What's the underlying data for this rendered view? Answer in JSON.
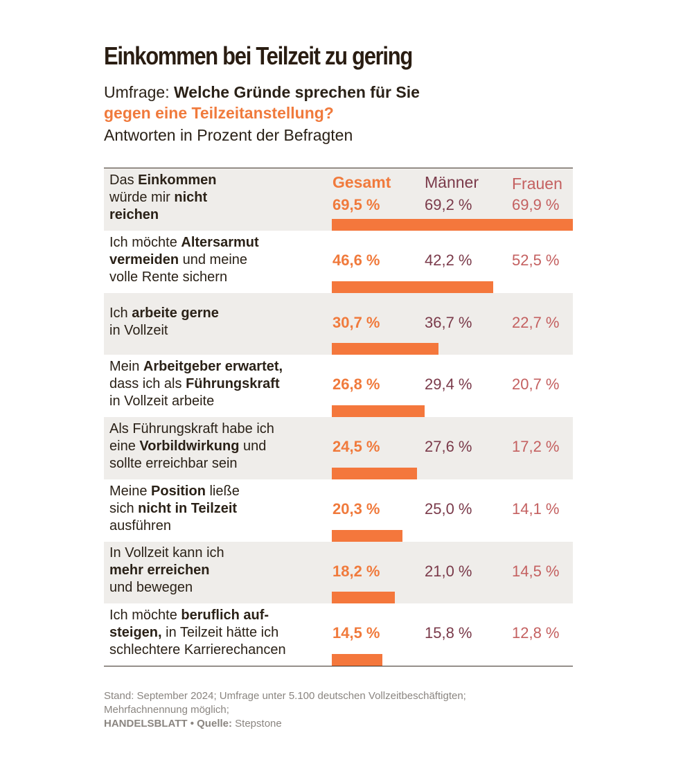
{
  "title": "Einkommen bei Teilzeit zu gering",
  "subtitle": {
    "prefix": "Umfrage: ",
    "question_part1": "Welche Gründe sprechen für Sie",
    "question_part2": "gegen eine Teilzeitanstellung?",
    "note": "Antworten in Prozent der Befragten"
  },
  "columns": {
    "total": "Gesamt",
    "men": "Männer",
    "women": "Frauen"
  },
  "colors": {
    "accent": "#f4773c",
    "men": "#7a3a4a",
    "women": "#c46060",
    "shade": "#efedea"
  },
  "rows": [
    {
      "label_parts": [
        [
          "Das ",
          false
        ],
        [
          "Einkommen",
          true
        ],
        [
          "\nwürde mir ",
          false
        ],
        [
          "nicht",
          true
        ],
        [
          "\nreichen",
          true
        ]
      ],
      "total": "69,5 %",
      "men": "69,2 %",
      "women": "69,9 %"
    },
    {
      "label_parts": [
        [
          "Ich möchte ",
          false
        ],
        [
          "Altersarmut",
          true
        ],
        [
          "\n",
          false
        ],
        [
          "vermeiden",
          true
        ],
        [
          " und meine\nvolle Rente sichern",
          false
        ]
      ],
      "total": "46,6 %",
      "men": "42,2 %",
      "women": "52,5 %"
    },
    {
      "label_parts": [
        [
          "Ich ",
          false
        ],
        [
          "arbeite gerne",
          true
        ],
        [
          "\nin Vollzeit",
          false
        ]
      ],
      "total": "30,7 %",
      "men": "36,7 %",
      "women": "22,7 %"
    },
    {
      "label_parts": [
        [
          "Mein ",
          false
        ],
        [
          "Arbeitgeber erwartet,",
          true
        ],
        [
          "\ndass ich als ",
          false
        ],
        [
          "Führungskraft",
          true
        ],
        [
          "\nin Vollzeit arbeite",
          false
        ]
      ],
      "total": "26,8 %",
      "men": "29,4 %",
      "women": "20,7 %"
    },
    {
      "label_parts": [
        [
          "Als Führungskraft habe ich\neine ",
          false
        ],
        [
          "Vorbildwirkung",
          true
        ],
        [
          " und\nsollte erreichbar sein",
          false
        ]
      ],
      "total": "24,5 %",
      "men": "27,6 %",
      "women": "17,2 %"
    },
    {
      "label_parts": [
        [
          "Meine ",
          false
        ],
        [
          "Position",
          true
        ],
        [
          " ließe\nsich ",
          false
        ],
        [
          "nicht in Teilzeit",
          true
        ],
        [
          "\nausführen",
          false
        ]
      ],
      "total": "20,3 %",
      "men": "25,0 %",
      "women": "14,1 %"
    },
    {
      "label_parts": [
        [
          "In Vollzeit kann ich\n",
          false
        ],
        [
          "mehr erreichen",
          true
        ],
        [
          "\nund bewegen",
          false
        ]
      ],
      "total": "18,2 %",
      "men": "21,0 %",
      "women": "14,5 %"
    },
    {
      "label_parts": [
        [
          "Ich möchte ",
          false
        ],
        [
          "beruflich auf-\nsteigen,",
          true
        ],
        [
          " in Teilzeit hätte ich\nschlechtere Karrierechancen",
          false
        ]
      ],
      "total": "14,5 %",
      "men": "15,8 %",
      "women": "12,8 %"
    }
  ],
  "chart_data": {
    "type": "bar",
    "categories": [
      "Das Einkommen würde mir nicht reichen",
      "Ich möchte Altersarmut vermeiden und meine volle Rente sichern",
      "Ich arbeite gerne in Vollzeit",
      "Mein Arbeitgeber erwartet, dass ich als Führungskraft in Vollzeit arbeite",
      "Als Führungskraft habe ich eine Vorbildwirkung und sollte erreichbar sein",
      "Meine Position ließe sich nicht in Teilzeit ausführen",
      "In Vollzeit kann ich mehr erreichen und bewegen",
      "Ich möchte beruflich aufsteigen, in Teilzeit hätte ich schlechtere Karrierechancen"
    ],
    "series": [
      {
        "name": "Gesamt",
        "values": [
          69.5,
          46.6,
          30.7,
          26.8,
          24.5,
          20.3,
          18.2,
          14.5
        ]
      },
      {
        "name": "Männer",
        "values": [
          69.2,
          42.2,
          36.7,
          29.4,
          27.6,
          25.0,
          21.0,
          15.8
        ]
      },
      {
        "name": "Frauen",
        "values": [
          69.9,
          52.5,
          22.7,
          20.7,
          17.2,
          14.1,
          14.5,
          12.8
        ]
      }
    ],
    "bars_shown_for": "Gesamt",
    "xlim": [
      0,
      69.5
    ]
  },
  "footer": {
    "line1": "Stand: September 2024; Umfrage unter 5.100 deutschen Vollzeitbeschäftigten;",
    "line2": "Mehrfachnennung möglich;",
    "publisher": "HANDELSBLATT",
    "separator": " • ",
    "source_label": "Quelle:",
    "source": " Stepstone"
  }
}
